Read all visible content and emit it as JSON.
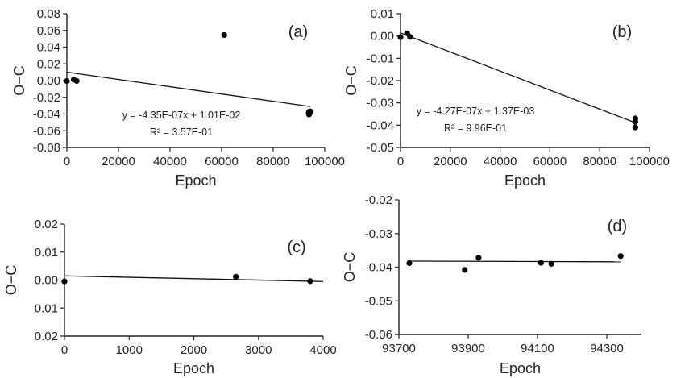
{
  "chart_data": [
    {
      "type": "scatter",
      "panel_label": "(a)",
      "xlabel": "Epoch",
      "ylabel": "O−C",
      "xlim": [
        0,
        100000
      ],
      "ylim": [
        -0.08,
        0.08
      ],
      "x_ticks": [
        "0",
        "20000",
        "40000",
        "60000",
        "80000",
        "100000"
      ],
      "y_ticks": [
        "-0.08",
        "-0.06",
        "-0.04",
        "-0.02",
        "0.00",
        "0.02",
        "0.04",
        "0.06",
        "0.08"
      ],
      "grid": false,
      "points": [
        {
          "x": 0,
          "y": -0.0005
        },
        {
          "x": 2650,
          "y": 0.0012
        },
        {
          "x": 3800,
          "y": -0.0004
        },
        {
          "x": 61000,
          "y": 0.0545
        },
        {
          "x": 93750,
          "y": -0.0387
        },
        {
          "x": 93890,
          "y": -0.0405
        },
        {
          "x": 93930,
          "y": -0.0372
        },
        {
          "x": 94110,
          "y": -0.0387
        },
        {
          "x": 94150,
          "y": -0.039
        },
        {
          "x": 94340,
          "y": -0.0368
        }
      ],
      "trendline": {
        "x": [
          0,
          94400
        ],
        "y": [
          0.0101,
          -0.031
        ]
      },
      "equation": "y = -4.35E-07x + 1.01E-02",
      "r_squared": "R² = 3.57E-01"
    },
    {
      "type": "scatter",
      "panel_label": "(b)",
      "xlabel": "Epoch",
      "ylabel": "O−C",
      "xlim": [
        0,
        100000
      ],
      "ylim": [
        -0.05,
        0.01
      ],
      "x_ticks": [
        "0",
        "20000",
        "40000",
        "60000",
        "80000",
        "100000"
      ],
      "y_ticks": [
        "-0.05",
        "-0.04",
        "-0.03",
        "-0.02",
        "-0.01",
        "0.00",
        "0.01"
      ],
      "grid": false,
      "points": [
        {
          "x": 0,
          "y": -0.0005
        },
        {
          "x": 2650,
          "y": 0.0012
        },
        {
          "x": 3800,
          "y": -0.0004
        },
        {
          "x": 94300,
          "y": -0.037
        },
        {
          "x": 94300,
          "y": -0.0385
        },
        {
          "x": 94300,
          "y": -0.041
        }
      ],
      "trendline": {
        "x": [
          0,
          94300
        ],
        "y": [
          0.00137,
          -0.0389
        ]
      },
      "equation": "y = -4.27E-07x + 1.37E-03",
      "r_squared": "R² = 9.96E-01"
    },
    {
      "type": "scatter",
      "panel_label": "(c)",
      "xlabel": "Epoch",
      "ylabel": "O−C",
      "xlim": [
        0,
        4000
      ],
      "y_ticks": [
        "0.02",
        "0.01",
        "0.00",
        "0.01",
        "0.02"
      ],
      "y_tick_values": [
        0.02,
        0.01,
        0.0,
        -0.01,
        -0.02
      ],
      "x_ticks": [
        "0",
        "1000",
        "2000",
        "3000",
        "4000"
      ],
      "grid": false,
      "points": [
        {
          "x": 0,
          "y": -0.0005
        },
        {
          "x": 2650,
          "y": 0.0012
        },
        {
          "x": 3800,
          "y": -0.0004
        }
      ],
      "trendline": {
        "x": [
          0,
          4000
        ],
        "y": [
          0.0015,
          -0.0005
        ]
      }
    },
    {
      "type": "scatter",
      "panel_label": "(d)",
      "xlabel": "Epoch",
      "ylabel": "O−C",
      "xlim": [
        93700,
        94400
      ],
      "ylim": [
        -0.06,
        -0.02
      ],
      "x_ticks": [
        "93700",
        "93900",
        "94100",
        "94300"
      ],
      "y_ticks": [
        "-0.06",
        "-0.05",
        "-0.04",
        "-0.03",
        "-0.02"
      ],
      "grid": false,
      "points": [
        {
          "x": 93730,
          "y": -0.0388
        },
        {
          "x": 93890,
          "y": -0.0408
        },
        {
          "x": 93930,
          "y": -0.0372
        },
        {
          "x": 94110,
          "y": -0.0387
        },
        {
          "x": 94140,
          "y": -0.039
        },
        {
          "x": 94340,
          "y": -0.0367
        }
      ],
      "trendline": {
        "x": [
          93730,
          94340
        ],
        "y": [
          -0.0382,
          -0.0384
        ]
      }
    }
  ]
}
